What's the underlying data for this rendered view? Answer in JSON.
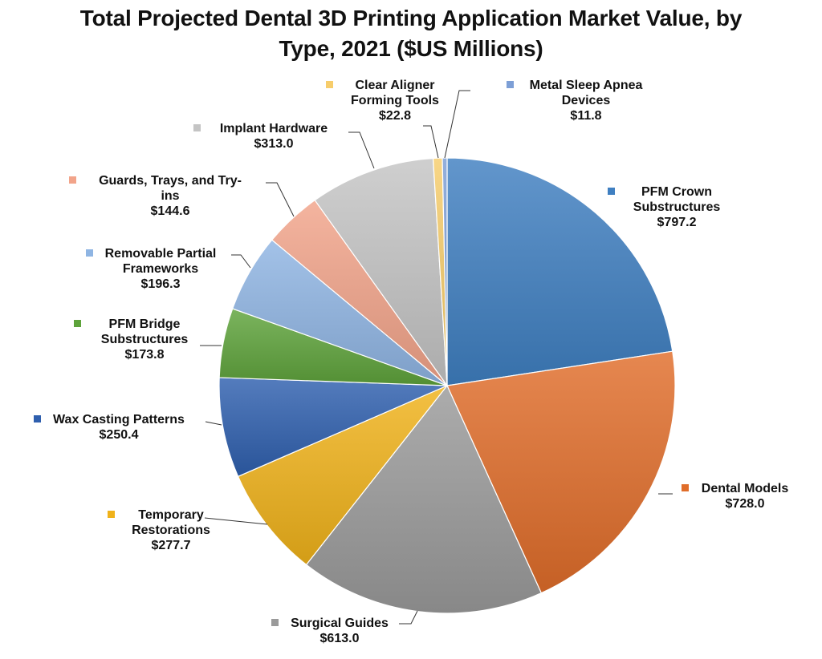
{
  "chart_data": {
    "type": "pie",
    "title_line1": "Total Projected Dental 3D Printing Application Market Value, by",
    "title_line2": "Type, 2021 ($US Millions)",
    "slices": [
      {
        "name": "PFM Crown Substructures",
        "value": 797.2,
        "value_label": "$797.2",
        "color": "#3f7fc1"
      },
      {
        "name": "Dental Models",
        "value": 728.0,
        "value_label": "$728.0",
        "color": "#e06d2a"
      },
      {
        "name": "Surgical Guides",
        "value": 613.0,
        "value_label": "$613.0",
        "color": "#9a9a9a"
      },
      {
        "name": "Temporary Restorations",
        "value": 277.7,
        "value_label": "$277.7",
        "color": "#f0b21a"
      },
      {
        "name": "Wax Casting Patterns",
        "value": 250.4,
        "value_label": "$250.4",
        "color": "#2f5fae"
      },
      {
        "name": "PFM Bridge Substructures",
        "value": 173.8,
        "value_label": "$173.8",
        "color": "#5ea33b"
      },
      {
        "name": "Removable Partial Frameworks",
        "value": 196.3,
        "value_label": "$196.3",
        "color": "#8fb5e3"
      },
      {
        "name": "Guards, Trays, and Try-ins",
        "value": 144.6,
        "value_label": "$144.6",
        "color": "#f2a48a"
      },
      {
        "name": "Implant Hardware",
        "value": 313.0,
        "value_label": "$313.0",
        "color": "#c4c4c4"
      },
      {
        "name": "Clear Aligner Forming Tools",
        "value": 22.8,
        "value_label": "$22.8",
        "color": "#f7cd6b"
      },
      {
        "name": "Metal Sleep Apnea Devices",
        "value": 11.8,
        "value_label": "$11.8",
        "color": "#7d9fd6"
      }
    ]
  }
}
